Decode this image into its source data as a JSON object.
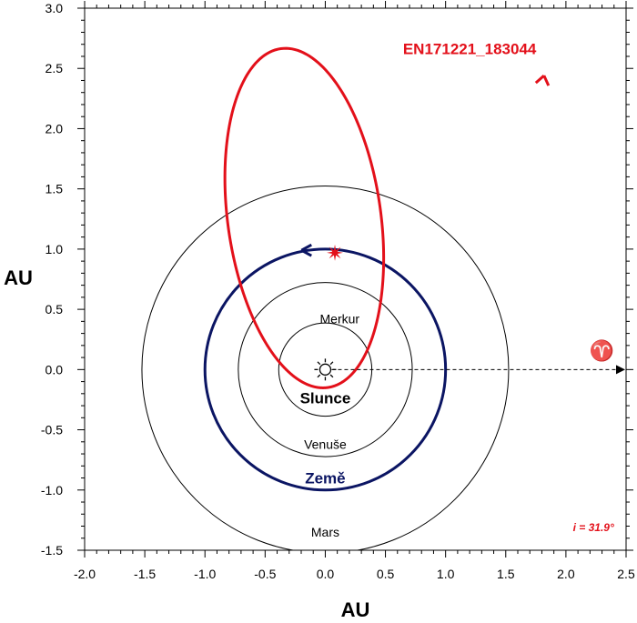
{
  "chart_data": {
    "type": "scatter",
    "title": "",
    "xlabel": "AU",
    "ylabel": "AU",
    "xlim": [
      -2.0,
      2.5
    ],
    "ylim": [
      -1.5,
      3.0
    ],
    "x_ticks": [
      "-2.0",
      "-1.5",
      "-1.0",
      "-0.5",
      "0.0",
      "0.5",
      "1.0",
      "1.5",
      "2.0",
      "2.5"
    ],
    "y_ticks": [
      "-1.5",
      "-1.0",
      "-0.5",
      "0.0",
      "0.5",
      "1.0",
      "1.5",
      "2.0",
      "2.5",
      "3.0"
    ],
    "grid": false,
    "sun": {
      "label": "Slunce",
      "x": 0.0,
      "y": 0.0
    },
    "planet_orbits": [
      {
        "name": "Merkur",
        "radius_au": 0.387,
        "color": "#000000",
        "label_bold": false
      },
      {
        "name": "Venuše",
        "radius_au": 0.723,
        "color": "#000000",
        "label_bold": false
      },
      {
        "name": "Země",
        "radius_au": 1.0,
        "color": "#0b1563",
        "label_bold": true
      },
      {
        "name": "Mars",
        "radius_au": 1.524,
        "color": "#000000",
        "label_bold": false
      }
    ],
    "meteoroid_orbit": {
      "name": "EN171221_183044",
      "color": "#e3101a",
      "perihelion_au": 0.15,
      "aphelion_au": 2.69,
      "semi_major_axis_au": 1.42,
      "eccentricity": 0.894,
      "perihelion_direction_deg": -82.1,
      "encounter_point": {
        "x": 0.08,
        "y": 0.97
      }
    },
    "vernal_equinox": {
      "symbol": "♈"
    },
    "inclination_label": "i = 31.9°"
  }
}
